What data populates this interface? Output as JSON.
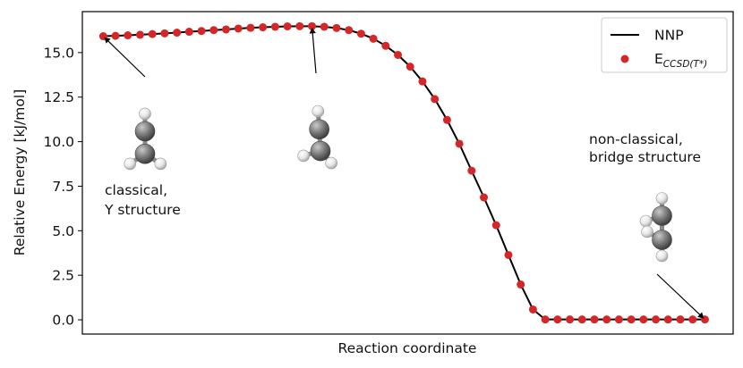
{
  "chart_data": {
    "type": "line",
    "xlabel": "Reaction coordinate",
    "ylabel": "Relative Energy [kJ/mol]",
    "ylim": [
      -0.8,
      17.3
    ],
    "xlim": [
      -1.7,
      51.3
    ],
    "yticks": [
      "0.0",
      "2.5",
      "5.0",
      "7.5",
      "10.0",
      "12.5",
      "15.0"
    ],
    "ytick_values": [
      0,
      2.5,
      5,
      7.5,
      10,
      12.5,
      15
    ],
    "legend": {
      "position": "top-right",
      "entries": [
        {
          "label": "NNP",
          "kind": "line"
        },
        {
          "label_main": "E",
          "label_sub": "CCSD(T*)",
          "kind": "marker"
        }
      ]
    },
    "series": [
      {
        "name": "NNP",
        "kind": "line",
        "color": "#000000",
        "x": [
          0,
          1,
          2,
          3,
          4,
          5,
          6,
          7,
          8,
          9,
          10,
          11,
          12,
          13,
          14,
          15,
          16,
          17,
          18,
          19,
          20,
          21,
          22,
          23,
          24,
          25,
          26,
          27,
          28,
          29,
          30,
          31,
          32,
          33,
          34,
          35,
          36,
          37,
          38,
          39,
          40,
          41,
          42,
          43,
          44,
          45,
          46,
          47,
          48,
          49
        ],
        "y": [
          15.92,
          15.94,
          15.97,
          16.0,
          16.04,
          16.08,
          16.12,
          16.17,
          16.21,
          16.26,
          16.3,
          16.35,
          16.39,
          16.42,
          16.45,
          16.47,
          16.48,
          16.48,
          16.45,
          16.38,
          16.26,
          16.06,
          15.78,
          15.38,
          14.87,
          14.21,
          13.38,
          12.39,
          11.22,
          9.88,
          8.37,
          6.87,
          5.31,
          3.64,
          1.98,
          0.58,
          0.02,
          0.02,
          0.02,
          0.02,
          0.02,
          0.02,
          0.02,
          0.02,
          0.02,
          0.02,
          0.02,
          0.02,
          0.02,
          0.02
        ]
      },
      {
        "name": "E_CCSD(T*)",
        "kind": "scatter",
        "color": "#d62728",
        "x": [
          0,
          1,
          2,
          3,
          4,
          5,
          6,
          7,
          8,
          9,
          10,
          11,
          12,
          13,
          14,
          15,
          16,
          17,
          18,
          19,
          20,
          21,
          22,
          23,
          24,
          25,
          26,
          27,
          28,
          29,
          30,
          31,
          32,
          33,
          34,
          35,
          36,
          37,
          38,
          39,
          40,
          41,
          42,
          43,
          44,
          45,
          46,
          47,
          48,
          49
        ],
        "y": [
          15.92,
          15.94,
          15.97,
          16.0,
          16.04,
          16.08,
          16.12,
          16.17,
          16.21,
          16.26,
          16.3,
          16.35,
          16.39,
          16.42,
          16.45,
          16.47,
          16.48,
          16.48,
          16.45,
          16.38,
          16.26,
          16.06,
          15.78,
          15.38,
          14.87,
          14.21,
          13.38,
          12.39,
          11.22,
          9.88,
          8.37,
          6.87,
          5.31,
          3.64,
          1.98,
          0.58,
          0.02,
          0.02,
          0.02,
          0.02,
          0.02,
          0.02,
          0.02,
          0.02,
          0.02,
          0.02,
          0.02,
          0.02,
          0.02,
          0.02
        ]
      }
    ],
    "annotations": [
      {
        "name": "classical",
        "lines": [
          "classical,",
          "Y structure"
        ],
        "arrow_to": {
          "x": 0,
          "y": 15.92
        }
      },
      {
        "name": "mid",
        "lines": [],
        "arrow_to": {
          "x": 17,
          "y": 16.48
        }
      },
      {
        "name": "nonclassical",
        "lines": [
          "non-classical,",
          "bridge structure"
        ],
        "arrow_to": {
          "x": 49,
          "y": 0.02
        }
      }
    ],
    "molecules": [
      {
        "name": "y-structure",
        "atoms": [
          {
            "el": "H",
            "x": 0,
            "y": -1.45
          },
          {
            "el": "C",
            "x": 0,
            "y": -0.75
          },
          {
            "el": "C",
            "x": 0,
            "y": 0.15
          },
          {
            "el": "H",
            "x": -0.6,
            "y": 0.55
          },
          {
            "el": "H",
            "x": 0.62,
            "y": 0.55
          }
        ],
        "bonds": [
          [
            0,
            1
          ],
          [
            1,
            2
          ],
          [
            2,
            3
          ],
          [
            2,
            4
          ]
        ]
      },
      {
        "name": "twisted-structure",
        "atoms": [
          {
            "el": "H",
            "x": -0.1,
            "y": -1.5
          },
          {
            "el": "C",
            "x": -0.05,
            "y": -0.75
          },
          {
            "el": "C",
            "x": 0.0,
            "y": 0.15
          },
          {
            "el": "H",
            "x": -0.7,
            "y": 0.35
          },
          {
            "el": "H",
            "x": 0.45,
            "y": 0.65
          }
        ],
        "bonds": [
          [
            0,
            1
          ],
          [
            1,
            2
          ],
          [
            2,
            3
          ],
          [
            2,
            4
          ]
        ]
      },
      {
        "name": "bridge-structure",
        "atoms": [
          {
            "el": "H",
            "x": 0.05,
            "y": -1.2
          },
          {
            "el": "C",
            "x": 0.05,
            "y": -0.55
          },
          {
            "el": "C",
            "x": 0.05,
            "y": 0.35
          },
          {
            "el": "H",
            "x": -0.55,
            "y": -0.35
          },
          {
            "el": "H",
            "x": -0.5,
            "y": 0.05
          },
          {
            "el": "H",
            "x": 0.05,
            "y": 0.95
          }
        ],
        "bonds": [
          [
            0,
            1
          ],
          [
            1,
            2
          ],
          [
            1,
            3
          ],
          [
            2,
            4
          ],
          [
            2,
            5
          ]
        ]
      }
    ]
  }
}
